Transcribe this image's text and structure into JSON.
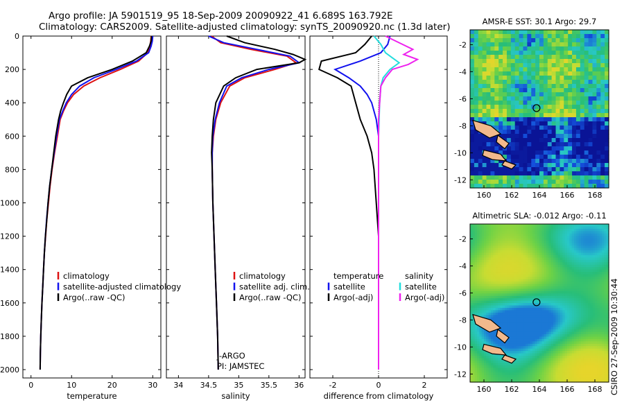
{
  "header": {
    "line1": "Argo profile: JA 5901519_95 18-Sep-2009 20090922_41 6.689S 163.792E",
    "line2": "Climatology: CARS2009. Satellite-adjusted climatology: synTS_20090920.nc (1.3d later)"
  },
  "side_label": "CSIRO 27-Sep-2009 10:30:44",
  "colors": {
    "climatology": "#dd1111",
    "satellite": "#1111ee",
    "argo": "#000000",
    "sat_salinity": "#22dddd",
    "argo_salinity_diff": "#ee22ee"
  },
  "chart_data": [
    {
      "type": "line",
      "name": "temperature-profile",
      "xlabel": "temperature",
      "x_ticks": [
        "0",
        "10",
        "20",
        "30"
      ],
      "xlim": [
        -2,
        32
      ],
      "y_ticks": [
        "0",
        "200",
        "400",
        "600",
        "800",
        "1000",
        "1200",
        "1400",
        "1600",
        "1800",
        "2000"
      ],
      "ylim": [
        2050,
        0
      ],
      "legend": [
        "climatology",
        "satellite-adjusted climatology",
        "Argo(..raw -QC)"
      ],
      "series": [
        {
          "name": "climatology",
          "color": "#dd1111",
          "points": [
            [
              29.6,
              0
            ],
            [
              29.5,
              30
            ],
            [
              29.3,
              60
            ],
            [
              28.8,
              100
            ],
            [
              26.5,
              150
            ],
            [
              22,
              200
            ],
            [
              17,
              250
            ],
            [
              13,
              300
            ],
            [
              10.5,
              350
            ],
            [
              9,
              400
            ],
            [
              8,
              450
            ],
            [
              7.2,
              500
            ],
            [
              6.5,
              600
            ],
            [
              5.8,
              700
            ],
            [
              5.2,
              800
            ],
            [
              4.7,
              900
            ],
            [
              4.3,
              1000
            ],
            [
              3.9,
              1100
            ],
            [
              3.6,
              1200
            ],
            [
              3.3,
              1300
            ],
            [
              3.1,
              1400
            ],
            [
              2.9,
              1500
            ],
            [
              2.7,
              1600
            ],
            [
              2.55,
              1700
            ],
            [
              2.4,
              1800
            ],
            [
              2.3,
              1900
            ],
            [
              2.25,
              2000
            ]
          ]
        },
        {
          "name": "satellite-adjusted climatology",
          "color": "#1111ee",
          "points": [
            [
              30.0,
              0
            ],
            [
              29.9,
              30
            ],
            [
              29.6,
              60
            ],
            [
              29,
              100
            ],
            [
              26,
              150
            ],
            [
              21,
              200
            ],
            [
              15.5,
              250
            ],
            [
              12,
              300
            ],
            [
              10,
              350
            ],
            [
              8.7,
              400
            ],
            [
              7.8,
              450
            ],
            [
              7,
              500
            ],
            [
              6.3,
              600
            ],
            [
              5.7,
              700
            ],
            [
              5.1,
              800
            ],
            [
              4.6,
              900
            ],
            [
              4.2,
              1000
            ],
            [
              3.85,
              1100
            ],
            [
              3.55,
              1200
            ],
            [
              3.3,
              1300
            ],
            [
              3.1,
              1400
            ],
            [
              2.9,
              1500
            ],
            [
              2.7,
              1600
            ],
            [
              2.55,
              1700
            ],
            [
              2.4,
              1800
            ],
            [
              2.3,
              1900
            ],
            [
              2.25,
              2000
            ]
          ]
        },
        {
          "name": "Argo(..raw -QC)",
          "color": "#000000",
          "points": [
            [
              29.7,
              0
            ],
            [
              29.6,
              30
            ],
            [
              29.2,
              60
            ],
            [
              28.4,
              100
            ],
            [
              25,
              150
            ],
            [
              20,
              200
            ],
            [
              14,
              250
            ],
            [
              10,
              300
            ],
            [
              8.8,
              350
            ],
            [
              8,
              400
            ],
            [
              7.3,
              450
            ],
            [
              6.8,
              500
            ],
            [
              6.1,
              600
            ],
            [
              5.6,
              700
            ],
            [
              5.1,
              800
            ],
            [
              4.6,
              900
            ],
            [
              4.2,
              1000
            ],
            [
              3.9,
              1100
            ],
            [
              3.55,
              1200
            ],
            [
              3.3,
              1300
            ],
            [
              3.1,
              1400
            ],
            [
              2.9,
              1500
            ],
            [
              2.7,
              1600
            ],
            [
              2.55,
              1700
            ],
            [
              2.4,
              1800
            ],
            [
              2.3,
              1900
            ],
            [
              2.25,
              2000
            ]
          ]
        }
      ]
    },
    {
      "type": "line",
      "name": "salinity-profile",
      "xlabel": "salinity",
      "x_ticks": [
        "34",
        "34.5",
        "35",
        "35.5",
        "36"
      ],
      "xlim": [
        33.8,
        36.1
      ],
      "ylim": [
        2050,
        0
      ],
      "legend": [
        "climatology",
        "satellite adj. clim.",
        "Argo(..raw -QC)"
      ],
      "annotations": [
        "J-ARGO",
        "PI: JAMSTEC"
      ],
      "series": [
        {
          "name": "climatology",
          "color": "#dd1111",
          "points": [
            [
              34.55,
              0
            ],
            [
              34.7,
              40
            ],
            [
              35.2,
              80
            ],
            [
              35.8,
              120
            ],
            [
              35.95,
              160
            ],
            [
              35.6,
              200
            ],
            [
              35.1,
              250
            ],
            [
              34.85,
              300
            ],
            [
              34.7,
              400
            ],
            [
              34.62,
              500
            ],
            [
              34.58,
              600
            ],
            [
              34.56,
              700
            ],
            [
              34.56,
              800
            ],
            [
              34.57,
              1000
            ],
            [
              34.59,
              1200
            ],
            [
              34.61,
              1400
            ],
            [
              34.63,
              1600
            ],
            [
              34.65,
              1800
            ],
            [
              34.66,
              2000
            ]
          ]
        },
        {
          "name": "satellite adj. clim.",
          "color": "#1111ee",
          "points": [
            [
              34.5,
              0
            ],
            [
              34.75,
              40
            ],
            [
              35.3,
              80
            ],
            [
              35.85,
              120
            ],
            [
              36.0,
              160
            ],
            [
              35.5,
              200
            ],
            [
              35.05,
              250
            ],
            [
              34.8,
              300
            ],
            [
              34.68,
              400
            ],
            [
              34.61,
              500
            ],
            [
              34.57,
              600
            ],
            [
              34.56,
              700
            ],
            [
              34.56,
              800
            ],
            [
              34.57,
              1000
            ],
            [
              34.59,
              1200
            ],
            [
              34.61,
              1400
            ],
            [
              34.63,
              1600
            ],
            [
              34.65,
              1800
            ],
            [
              34.66,
              2000
            ]
          ]
        },
        {
          "name": "Argo(..raw -QC)",
          "color": "#000000",
          "points": [
            [
              34.8,
              0
            ],
            [
              35.1,
              40
            ],
            [
              35.6,
              80
            ],
            [
              35.9,
              110
            ],
            [
              36.1,
              140
            ],
            [
              36.0,
              160
            ],
            [
              35.3,
              200
            ],
            [
              34.95,
              250
            ],
            [
              34.75,
              300
            ],
            [
              34.62,
              400
            ],
            [
              34.58,
              500
            ],
            [
              34.56,
              600
            ],
            [
              34.55,
              700
            ],
            [
              34.56,
              800
            ],
            [
              34.57,
              1000
            ],
            [
              34.59,
              1200
            ],
            [
              34.61,
              1400
            ],
            [
              34.63,
              1600
            ],
            [
              34.65,
              1800
            ],
            [
              34.66,
              2000
            ]
          ]
        }
      ]
    },
    {
      "type": "line",
      "name": "difference-profile",
      "xlabel": "difference from climatology",
      "x_ticks": [
        "-2",
        "0",
        "2"
      ],
      "xlim": [
        -3,
        3
      ],
      "ylim": [
        2050,
        0
      ],
      "legend_temperature": [
        "temperature",
        "satellite",
        "Argo(-adj)"
      ],
      "legend_salinity": [
        "salinity",
        "satellite",
        "Argo(-adj)"
      ],
      "series": [
        {
          "name": "temperature satellite",
          "color": "#1111ee",
          "points": [
            [
              0.5,
              0
            ],
            [
              0.4,
              50
            ],
            [
              0.1,
              100
            ],
            [
              -0.8,
              150
            ],
            [
              -1.9,
              200
            ],
            [
              -1.3,
              250
            ],
            [
              -0.8,
              300
            ],
            [
              -0.5,
              350
            ],
            [
              -0.3,
              400
            ],
            [
              -0.1,
              500
            ],
            [
              0,
              600
            ],
            [
              0,
              2000
            ]
          ]
        },
        {
          "name": "temperature Argo(-adj)",
          "color": "#000000",
          "points": [
            [
              -0.3,
              0
            ],
            [
              -0.6,
              50
            ],
            [
              -1.0,
              100
            ],
            [
              -2.5,
              150
            ],
            [
              -2.6,
              200
            ],
            [
              -1.8,
              250
            ],
            [
              -1.2,
              300
            ],
            [
              -1.0,
              400
            ],
            [
              -0.8,
              500
            ],
            [
              -0.5,
              600
            ],
            [
              -0.3,
              700
            ],
            [
              -0.2,
              800
            ],
            [
              -0.1,
              1000
            ],
            [
              0,
              1200
            ],
            [
              0,
              2000
            ]
          ]
        },
        {
          "name": "salinity satellite",
          "color": "#22dddd",
          "points": [
            [
              -0.2,
              0
            ],
            [
              0.1,
              50
            ],
            [
              0.3,
              100
            ],
            [
              0.6,
              130
            ],
            [
              0.9,
              160
            ],
            [
              0.5,
              200
            ],
            [
              0.2,
              250
            ],
            [
              0.1,
              300
            ],
            [
              0.05,
              400
            ],
            [
              0,
              600
            ],
            [
              0,
              2000
            ]
          ]
        },
        {
          "name": "salinity Argo(-adj)",
          "color": "#ee22ee",
          "points": [
            [
              0.3,
              0
            ],
            [
              0.9,
              40
            ],
            [
              1.5,
              80
            ],
            [
              1.1,
              110
            ],
            [
              1.7,
              140
            ],
            [
              1.3,
              170
            ],
            [
              0.6,
              200
            ],
            [
              0.3,
              250
            ],
            [
              0.1,
              300
            ],
            [
              0.05,
              400
            ],
            [
              0,
              500
            ],
            [
              0,
              2000
            ]
          ]
        }
      ]
    },
    {
      "type": "heatmap",
      "name": "amsre-sst-map",
      "title": "AMSR-E SST: 30.1 Argo: 29.7",
      "x_ticks": [
        "160",
        "162",
        "164",
        "166",
        "168"
      ],
      "y_ticks": [
        "-2",
        "-4",
        "-6",
        "-8",
        "-10",
        "-12"
      ],
      "xlim": [
        159,
        169
      ],
      "ylim": [
        -12.6,
        -0.9
      ],
      "marker": {
        "lon": 163.792,
        "lat": -6.689
      }
    },
    {
      "type": "heatmap",
      "name": "altimetric-sla-map",
      "title": "Altimetric SLA: -0.012 Argo: -0.11",
      "x_ticks": [
        "160",
        "162",
        "164",
        "166",
        "168"
      ],
      "y_ticks": [
        "-2",
        "-4",
        "-6",
        "-8",
        "-10",
        "-12"
      ],
      "xlim": [
        159,
        169
      ],
      "ylim": [
        -12.6,
        -0.9
      ],
      "marker": {
        "lon": 163.792,
        "lat": -6.689
      }
    }
  ]
}
